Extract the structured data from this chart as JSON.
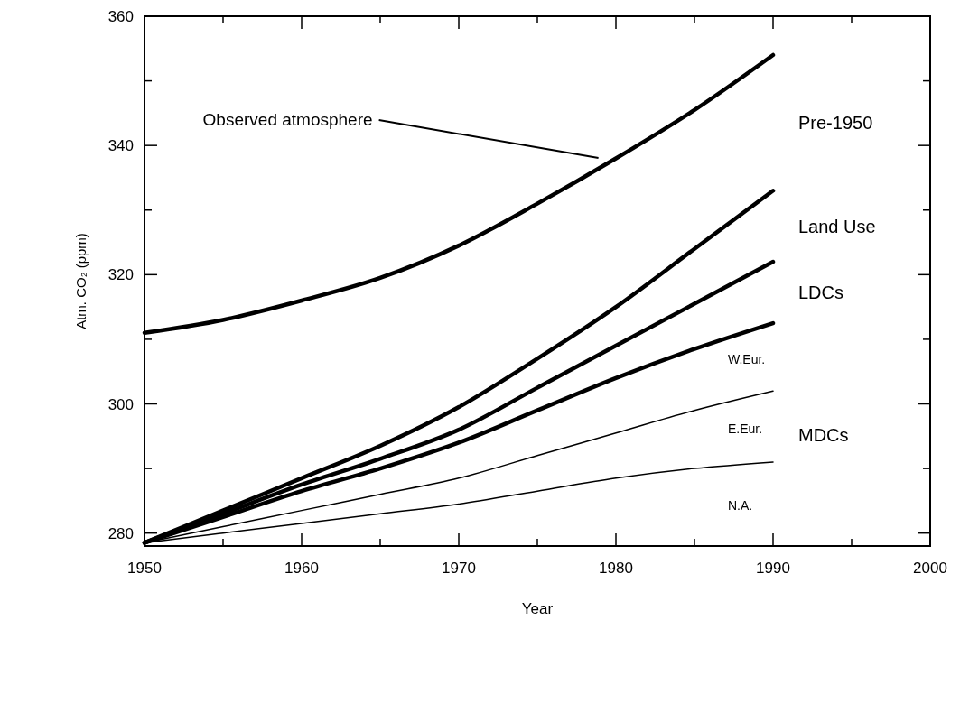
{
  "chart_data": {
    "type": "line",
    "xlabel": "Year",
    "ylabel": "Atm. CO₂ (ppm)",
    "xlim": [
      1950,
      2000
    ],
    "ylim": [
      278,
      360
    ],
    "xticks": [
      1950,
      {
        "value": 1955,
        "label": null
      },
      1960,
      {
        "value": 1965,
        "label": null
      },
      1970,
      {
        "value": 1975,
        "label": null
      },
      1980,
      {
        "value": 1985,
        "label": null
      },
      1990,
      {
        "value": 1995,
        "label": null
      },
      2000
    ],
    "yticks": [
      280,
      {
        "value": 290,
        "label": null
      },
      300,
      {
        "value": 310,
        "label": null
      },
      320,
      {
        "value": 330,
        "label": null
      },
      340,
      {
        "value": 350,
        "label": null
      },
      360
    ],
    "grid": false,
    "marker": "none",
    "line_style": "solid",
    "series": [
      {
        "color": "#000000",
        "x": [
          1950,
          1955,
          1960,
          1965,
          1970,
          1975,
          1980,
          1985,
          1990
        ],
        "values": [
          311,
          313,
          316,
          319.5,
          324.5,
          331,
          338,
          345.5,
          354
        ]
      },
      {
        "color": "#000000",
        "x": [
          1950,
          1955,
          1960,
          1965,
          1970,
          1975,
          1980,
          1985,
          1990
        ],
        "values": [
          278.5,
          283.5,
          288.5,
          293.5,
          299.5,
          307,
          315,
          324,
          333
        ]
      },
      {
        "color": "#000000",
        "x": [
          1950,
          1955,
          1960,
          1965,
          1970,
          1975,
          1980,
          1985,
          1990
        ],
        "values": [
          278.5,
          283,
          287.5,
          291.5,
          296,
          302.5,
          309,
          315.5,
          322
        ]
      },
      {
        "color": "#000000",
        "x": [
          1950,
          1955,
          1960,
          1965,
          1970,
          1975,
          1980,
          1985,
          1990
        ],
        "values": [
          278.5,
          282.5,
          286.5,
          290,
          294,
          299,
          304,
          308.5,
          312.5
        ]
      },
      {
        "color": "#000000",
        "x": [
          1950,
          1955,
          1960,
          1965,
          1970,
          1975,
          1980,
          1985,
          1990
        ],
        "values": [
          278.5,
          281,
          283.5,
          286,
          288.5,
          292,
          295.5,
          299,
          302
        ]
      },
      {
        "color": "#000000",
        "x": [
          1950,
          1955,
          1960,
          1965,
          1970,
          1975,
          1980,
          1985,
          1990
        ],
        "values": [
          278.5,
          280,
          281.5,
          283,
          284.5,
          286.5,
          288.5,
          290,
          291
        ]
      }
    ],
    "annotations": [
      {
        "text": "Observed atmosphere",
        "x": 1979,
        "y": 337.5
      },
      "Pre-1950",
      "Land Use",
      "LDCs",
      "W.Eur.",
      "MDCs",
      "E.Eur.",
      "N.A."
    ]
  }
}
